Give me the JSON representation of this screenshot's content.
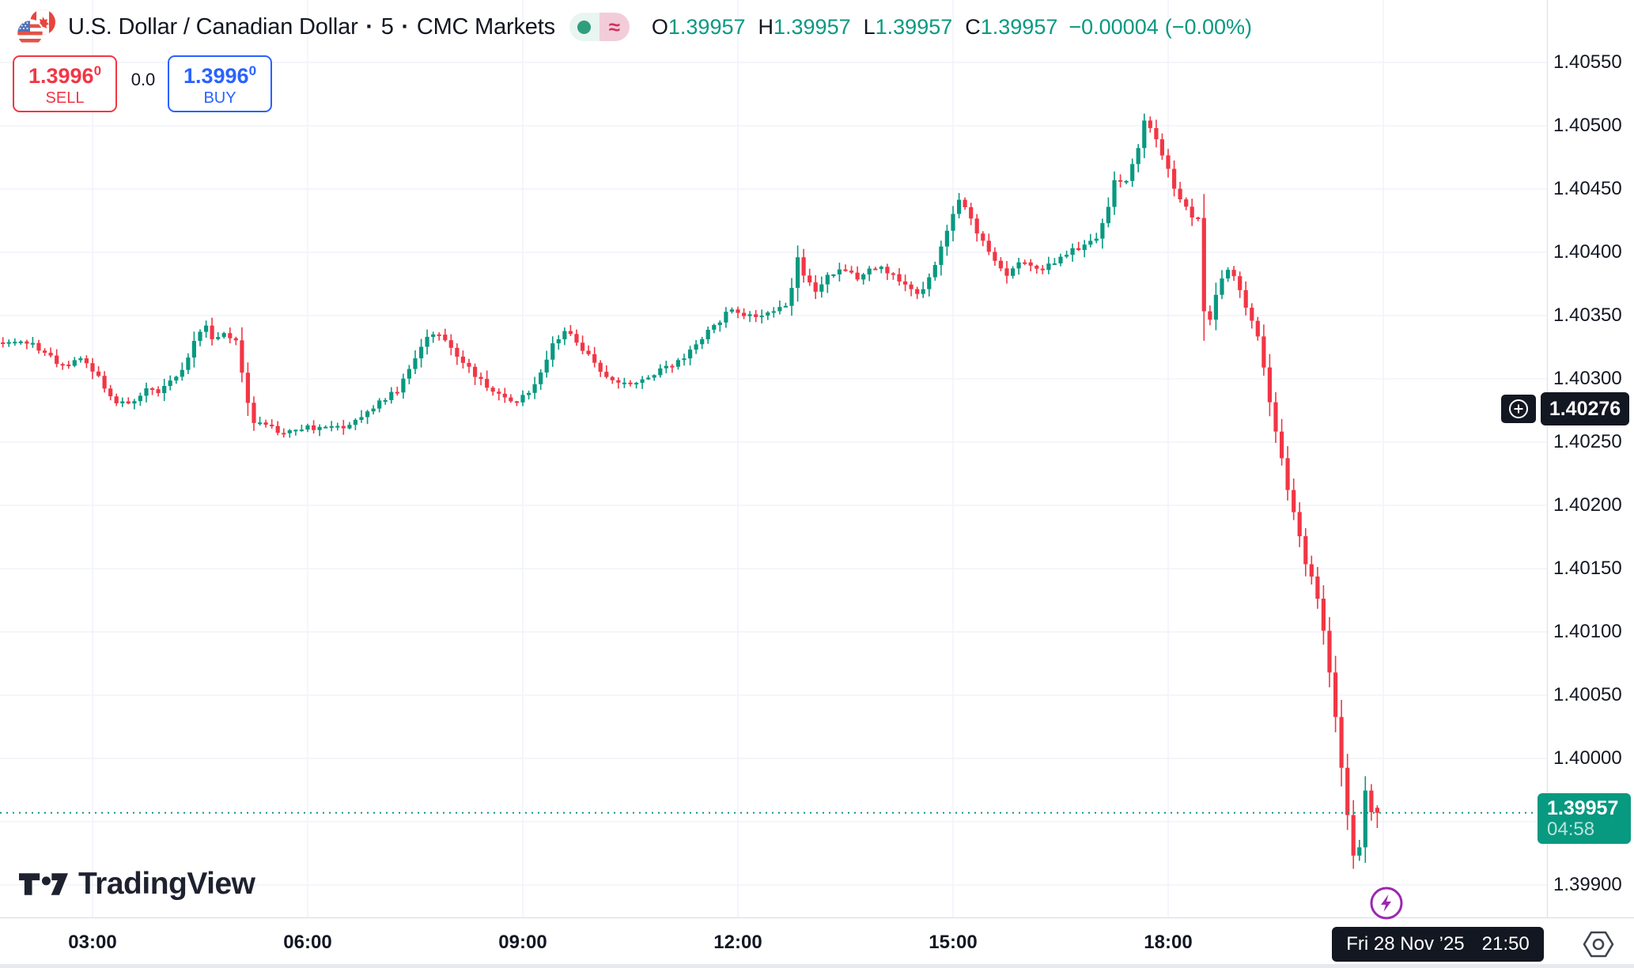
{
  "header": {
    "flags_icon": "us-canada-flags",
    "title": "U.S. Dollar / Canadian Dollar",
    "separator": "·",
    "interval": "5",
    "feed": "CMC Markets",
    "ohlc": {
      "o_label": "O",
      "o_value": "1.39957",
      "h_label": "H",
      "h_value": "1.39957",
      "l_label": "L",
      "l_value": "1.39957",
      "c_label": "C",
      "c_value": "1.39957",
      "change": "−0.00004",
      "change_pct": "(−0.00%)"
    },
    "status": {
      "open_dot_icon": "market-status-dot",
      "approx_icon": "≈"
    }
  },
  "order_panel": {
    "sell_price": "1.3996",
    "sell_sup": "0",
    "sell_label": "SELL",
    "spread": "0.0",
    "buy_price": "1.3996",
    "buy_sup": "0",
    "buy_label": "BUY"
  },
  "price_axis": {
    "ticks": [
      "1.40550",
      "1.40500",
      "1.40450",
      "1.40400",
      "1.40350",
      "1.40300",
      "1.40250",
      "1.40200",
      "1.40150",
      "1.40100",
      "1.40050",
      "1.40000",
      "1.39900"
    ],
    "crosshair_value": "1.40276",
    "last_price": "1.39957",
    "bar_countdown": "04:58"
  },
  "time_axis": {
    "labels": [
      "03:00",
      "06:00",
      "09:00",
      "12:00",
      "15:00",
      "18:00"
    ],
    "crosshair_date": "Fri 28 Nov ’25",
    "crosshair_time": "21:50"
  },
  "watermark": {
    "brand": "TradingView"
  },
  "colors": {
    "up": "#089981",
    "down": "#f23645",
    "sell_red": "#f23645",
    "buy_blue": "#2962ff",
    "grid": "#f0f3fa",
    "axis_separator": "#e0e3eb",
    "axis_text": "#131722",
    "tag_bg": "#131722",
    "last_price_bg": "#089981",
    "lightning_purple": "#9c27b0"
  },
  "chart_data": {
    "type": "candlestick",
    "title": "U.S. Dollar / Canadian Dollar, 5-minute, CMC Markets",
    "interval_minutes": 5,
    "session_date": "Fri 28 Nov 2025",
    "visible_time_range": [
      "01:45",
      "20:55"
    ],
    "x_gridline_every_minutes": 180,
    "first_labeled_gridline": "03:00",
    "price_axis_min": 1.39875,
    "price_axis_max": 1.406,
    "grid_step": 0.0005,
    "grid_top_price": 1.4055,
    "grid_bottom_price": 1.399,
    "last_price": 1.39957,
    "last_price_line": "dotted",
    "current_bar": {
      "open": 1.39957,
      "high": 1.39957,
      "low": 1.39957,
      "close": 1.39957,
      "change": -4e-05,
      "change_pct": "-0.00%"
    },
    "crosshair": {
      "price": 1.40276,
      "time": "21:50"
    },
    "session_high": 1.40515,
    "session_low": 1.39885,
    "price_path_anchors_min_price": [
      [
        105,
        1.4033
      ],
      [
        135,
        1.40328
      ],
      [
        160,
        1.4031
      ],
      [
        175,
        1.40318
      ],
      [
        190,
        1.403
      ],
      [
        205,
        1.40282
      ],
      [
        215,
        1.4028
      ],
      [
        230,
        1.40292
      ],
      [
        240,
        1.40288
      ],
      [
        252,
        1.403
      ],
      [
        262,
        1.40308
      ],
      [
        270,
        1.4033
      ],
      [
        278,
        1.40345
      ],
      [
        285,
        1.40332
      ],
      [
        295,
        1.40335
      ],
      [
        305,
        1.4033
      ],
      [
        312,
        1.40295
      ],
      [
        318,
        1.40268
      ],
      [
        330,
        1.40262
      ],
      [
        345,
        1.40258
      ],
      [
        360,
        1.40262
      ],
      [
        378,
        1.4026
      ],
      [
        395,
        1.40263
      ],
      [
        410,
        1.4027
      ],
      [
        425,
        1.40282
      ],
      [
        440,
        1.4029
      ],
      [
        452,
        1.4031
      ],
      [
        462,
        1.4033
      ],
      [
        472,
        1.40338
      ],
      [
        480,
        1.4033
      ],
      [
        490,
        1.40318
      ],
      [
        500,
        1.4031
      ],
      [
        512,
        1.40295
      ],
      [
        525,
        1.40288
      ],
      [
        538,
        1.40282
      ],
      [
        550,
        1.4029
      ],
      [
        562,
        1.40308
      ],
      [
        572,
        1.4033
      ],
      [
        582,
        1.4034
      ],
      [
        592,
        1.40325
      ],
      [
        605,
        1.40312
      ],
      [
        618,
        1.403
      ],
      [
        630,
        1.40295
      ],
      [
        645,
        1.403
      ],
      [
        658,
        1.40305
      ],
      [
        670,
        1.4031
      ],
      [
        682,
        1.4032
      ],
      [
        695,
        1.40332
      ],
      [
        708,
        1.40345
      ],
      [
        720,
        1.40355
      ],
      [
        732,
        1.4035
      ],
      [
        745,
        1.40352
      ],
      [
        758,
        1.40355
      ],
      [
        768,
        1.4036
      ],
      [
        775,
        1.40398
      ],
      [
        782,
        1.40378
      ],
      [
        790,
        1.4037
      ],
      [
        800,
        1.4038
      ],
      [
        812,
        1.40385
      ],
      [
        825,
        1.4038
      ],
      [
        838,
        1.4039
      ],
      [
        850,
        1.40385
      ],
      [
        862,
        1.40378
      ],
      [
        875,
        1.40365
      ],
      [
        888,
        1.40385
      ],
      [
        900,
        1.40418
      ],
      [
        910,
        1.4044
      ],
      [
        918,
        1.4043
      ],
      [
        928,
        1.4041
      ],
      [
        938,
        1.40395
      ],
      [
        950,
        1.4038
      ],
      [
        962,
        1.40395
      ],
      [
        975,
        1.40385
      ],
      [
        988,
        1.4039
      ],
      [
        1000,
        1.40398
      ],
      [
        1012,
        1.40405
      ],
      [
        1022,
        1.40408
      ],
      [
        1032,
        1.40425
      ],
      [
        1040,
        1.40455
      ],
      [
        1050,
        1.40458
      ],
      [
        1058,
        1.40475
      ],
      [
        1065,
        1.40505
      ],
      [
        1072,
        1.40498
      ],
      [
        1080,
        1.40478
      ],
      [
        1088,
        1.40455
      ],
      [
        1096,
        1.4044
      ],
      [
        1104,
        1.40428
      ],
      [
        1110,
        1.40425
      ],
      [
        1115,
        1.40352
      ],
      [
        1121,
        1.40348
      ],
      [
        1127,
        1.40372
      ],
      [
        1133,
        1.4039
      ],
      [
        1140,
        1.40382
      ],
      [
        1148,
        1.40362
      ],
      [
        1155,
        1.40345
      ],
      [
        1158,
        1.40345
      ],
      [
        1166,
        1.40305
      ],
      [
        1173,
        1.40268
      ],
      [
        1180,
        1.40238
      ],
      [
        1187,
        1.40205
      ],
      [
        1194,
        1.40178
      ],
      [
        1201,
        1.40148
      ],
      [
        1208,
        1.40138
      ],
      [
        1214,
        1.40105
      ],
      [
        1220,
        1.40068
      ],
      [
        1227,
        1.4002
      ],
      [
        1233,
        1.39968
      ],
      [
        1239,
        1.39925
      ],
      [
        1244,
        1.39915
      ],
      [
        1249,
        1.39988
      ],
      [
        1252,
        1.39945
      ],
      [
        1255,
        1.39957
      ]
    ]
  }
}
